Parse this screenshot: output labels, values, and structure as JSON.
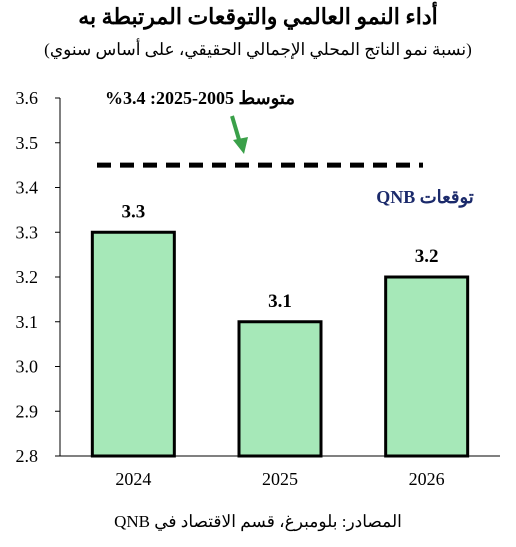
{
  "chart_data": {
    "type": "bar",
    "title": "أداء النمو العالمي والتوقعات المرتبطة به",
    "subtitle": "(نسبة نمو الناتج المحلي الإجمالي الحقيقي، على أساس سنوي)",
    "categories": [
      "2024",
      "2025",
      "2026"
    ],
    "values": [
      3.3,
      3.1,
      3.2
    ],
    "value_labels": [
      "3.3",
      "3.1",
      "3.2"
    ],
    "ylim": [
      2.8,
      3.6
    ],
    "yticks": [
      "2.8",
      "2.9",
      "3.0",
      "3.1",
      "3.2",
      "3.3",
      "3.4",
      "3.5",
      "3.6"
    ],
    "ytick_values": [
      2.8,
      2.9,
      3.0,
      3.1,
      3.2,
      3.3,
      3.4,
      3.5,
      3.6
    ],
    "average_line": {
      "value": 3.45,
      "label": "متوسط 2005-2025: 3.4%"
    },
    "forecast_label": "توقعات QNB",
    "grid": false,
    "source": "المصادر: بلومبرغ، قسم الاقتصاد في QNB"
  },
  "colors": {
    "bar_fill": "#a6e8b8",
    "bar_stroke": "#000000",
    "arrow": "#3aa049",
    "forecast_text": "#1b2a6b"
  }
}
